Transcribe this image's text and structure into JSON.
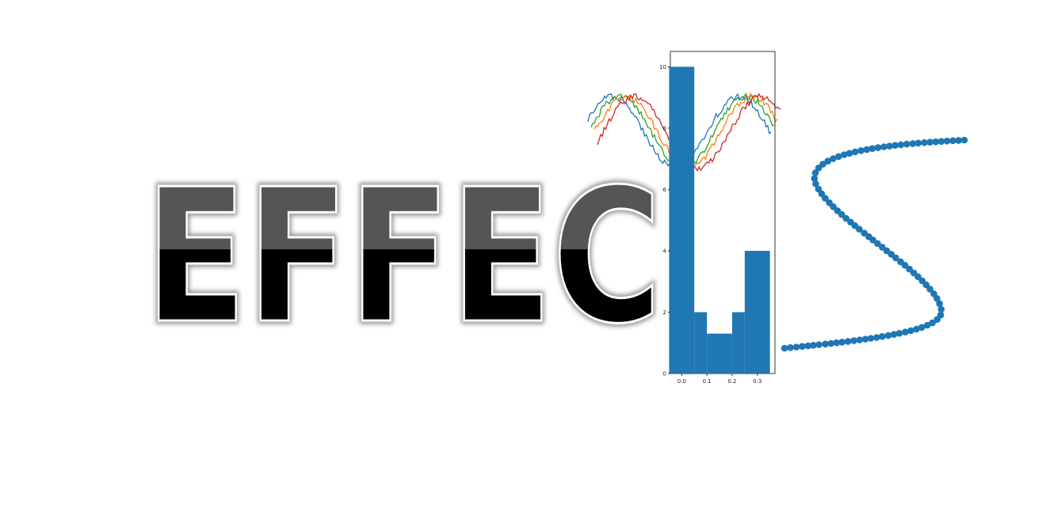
{
  "logo": {
    "wordmark": "EFFEC",
    "colors": {
      "text_top": "#555555",
      "text_bottom": "#000000",
      "text_outline": "#ffffff",
      "glow": "#9a9a9a",
      "accent_blue": "#1f77b4"
    }
  },
  "chart_data": [
    {
      "type": "line",
      "title": "",
      "xlabel": "",
      "ylabel": "",
      "grid": false,
      "axes_visible": false,
      "series": [
        {
          "color": "#1f77b4",
          "phase": 0.0
        },
        {
          "color": "#2ca02c",
          "phase": 0.15
        },
        {
          "color": "#ff7f0e",
          "phase": 0.25
        },
        {
          "color": "#d62728",
          "phase": 0.45
        }
      ]
    },
    {
      "type": "bar",
      "title": "",
      "xlabel": "",
      "ylabel": "",
      "grid": false,
      "bins": [
        {
          "x0": -0.05,
          "x1": 0.05,
          "value": 10
        },
        {
          "x0": 0.05,
          "x1": 0.1,
          "value": 2
        },
        {
          "x0": 0.1,
          "x1": 0.2,
          "value": 1.3
        },
        {
          "x0": 0.2,
          "x1": 0.25,
          "value": 2
        },
        {
          "x0": 0.25,
          "x1": 0.35,
          "value": 4
        }
      ],
      "color": "#1f77b4",
      "xlim": [
        -0.045,
        0.37
      ],
      "ylim": [
        0,
        10.5
      ],
      "x_ticks": [
        "0.0",
        "0.1",
        "0.2",
        "0.3"
      ],
      "x_tick_values": [
        0.0,
        0.1,
        0.2,
        0.3
      ],
      "y_ticks": [
        "0",
        "2",
        "4",
        "6",
        "8",
        "10"
      ],
      "y_tick_values": [
        0,
        2,
        4,
        6,
        8,
        10
      ]
    },
    {
      "type": "scatter",
      "title": "",
      "xlabel": "",
      "ylabel": "",
      "grid": false,
      "axes_visible": false,
      "shape": "S-curve",
      "point_count": 90,
      "color": "#1f77b4"
    }
  ]
}
